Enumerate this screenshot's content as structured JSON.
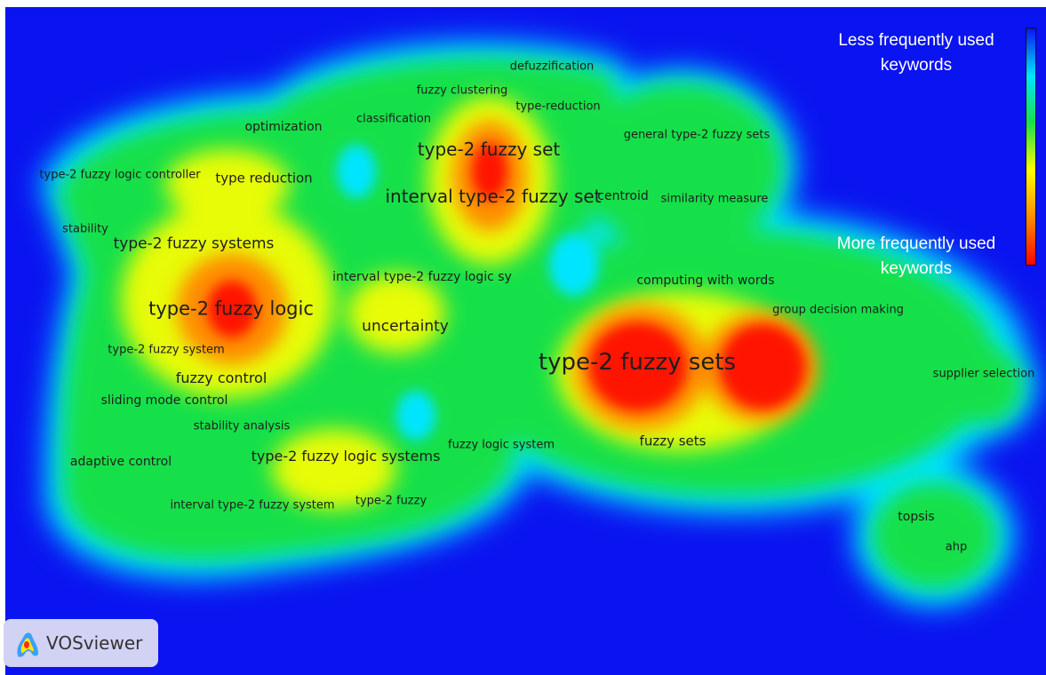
{
  "app": {
    "logo_text": "VOSviewer",
    "logo_icon": "vosviewer-logo-icon"
  },
  "legend": {
    "top_label": "Less frequently used\nkeywords",
    "bottom_label": "More frequently used\nkeywords",
    "scale_colors": [
      "#0a14f0",
      "#00e5ff",
      "#19e04a",
      "#ffff00",
      "#ff8c00",
      "#ff0000"
    ]
  },
  "colors": {
    "background": "#0a14f0",
    "halo": "#00e5ff",
    "low_density": "#19e04a",
    "mid_density": "#ffff00",
    "high_density": "#ff8c00",
    "peak_density": "#ff0000"
  },
  "keywords": [
    {
      "id": "kw-type2-fuzzy-sets",
      "text": "type-2 fuzzy sets",
      "weight": 5
    },
    {
      "id": "kw-type2-fuzzy-logic",
      "text": "type-2 fuzzy logic",
      "weight": 4
    },
    {
      "id": "kw-type2-fuzzy-set",
      "text": "type-2 fuzzy set",
      "weight": 4
    },
    {
      "id": "kw-interval-type2-fuzzy-set",
      "text": "interval type-2 fuzzy set",
      "weight": 4
    },
    {
      "id": "kw-type2-fuzzy-systems",
      "text": "type-2 fuzzy systems",
      "weight": 3
    },
    {
      "id": "kw-uncertainty",
      "text": "uncertainty",
      "weight": 3
    },
    {
      "id": "kw-type2-fuzzy-logic-systems",
      "text": "type-2 fuzzy logic systems",
      "weight": 3
    },
    {
      "id": "kw-fuzzy-control",
      "text": "fuzzy control",
      "weight": 3
    },
    {
      "id": "kw-type-reduction",
      "text": "type reduction",
      "weight": 2
    },
    {
      "id": "kw-fuzzy-sets",
      "text": "fuzzy sets",
      "weight": 2
    },
    {
      "id": "kw-computing-with-words",
      "text": "computing with words",
      "weight": 2
    },
    {
      "id": "kw-sliding-mode-control",
      "text": "sliding mode control",
      "weight": 2
    },
    {
      "id": "kw-adaptive-control",
      "text": "adaptive control",
      "weight": 2
    },
    {
      "id": "kw-optimization",
      "text": "optimization",
      "weight": 2
    },
    {
      "id": "kw-interval-type2-fuzzy-logic-sy",
      "text": "interval type-2 fuzzy logic sy",
      "weight": 2
    },
    {
      "id": "kw-centroid",
      "text": "centroid",
      "weight": 2
    },
    {
      "id": "kw-topsis",
      "text": "topsis",
      "weight": 2
    },
    {
      "id": "kw-classification",
      "text": "classification",
      "weight": 1
    },
    {
      "id": "kw-fuzzy-clustering",
      "text": "fuzzy clustering",
      "weight": 1
    },
    {
      "id": "kw-defuzzification",
      "text": "defuzzification",
      "weight": 1
    },
    {
      "id": "kw-type-reduction-hyphen",
      "text": "type-reduction",
      "weight": 1
    },
    {
      "id": "kw-general-type2-fuzzy-sets",
      "text": "general type-2 fuzzy sets",
      "weight": 1
    },
    {
      "id": "kw-similarity-measure",
      "text": "similarity measure",
      "weight": 1
    },
    {
      "id": "kw-type2-fuzzy-logic-controller",
      "text": "type-2 fuzzy logic controller",
      "weight": 1
    },
    {
      "id": "kw-stability",
      "text": "stability",
      "weight": 1
    },
    {
      "id": "kw-type2-fuzzy-system",
      "text": "type-2 fuzzy system",
      "weight": 1
    },
    {
      "id": "kw-stability-analysis",
      "text": "stability analysis",
      "weight": 1
    },
    {
      "id": "kw-interval-type2-fuzzy-system",
      "text": "interval type-2 fuzzy system",
      "weight": 1
    },
    {
      "id": "kw-type2-fuzzy",
      "text": "type-2 fuzzy",
      "weight": 1
    },
    {
      "id": "kw-fuzzy-logic-system",
      "text": "fuzzy logic system",
      "weight": 1
    },
    {
      "id": "kw-group-decision-making",
      "text": "group decision making",
      "weight": 1
    },
    {
      "id": "kw-supplier-selection",
      "text": "supplier selection",
      "weight": 1
    },
    {
      "id": "kw-ahp",
      "text": "ahp",
      "weight": 1
    }
  ]
}
